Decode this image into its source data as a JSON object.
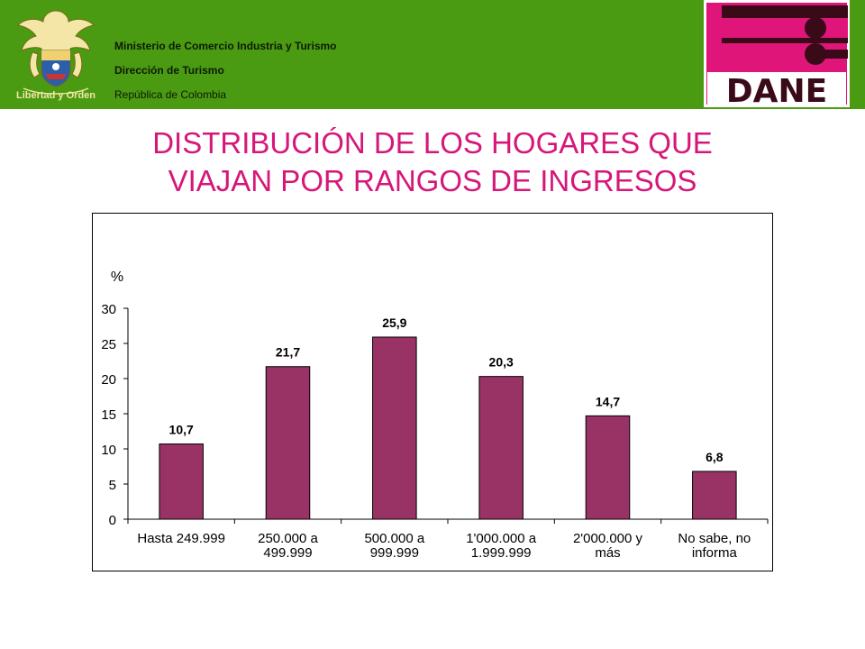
{
  "header": {
    "ministry": "Ministerio de Comercio Industria y Turismo",
    "direction": "Dirección de Turismo",
    "republic": "República de Colombia",
    "seal_text": "Libertad y Orden",
    "seal_icon": "coat-of-arms-icon",
    "logo_text": "DANE",
    "logo_icon": "dane-logo-icon",
    "bg_color": "#4a9a12"
  },
  "title_line1": "DISTRIBUCIÓN DE LOS HOGARES QUE",
  "title_line2": "VIAJAN POR RANGOS DE INGRESOS",
  "chart_data": {
    "type": "bar",
    "title": "DISTRIBUCIÓN DE LOS HOGARES QUE VIAJAN POR RANGOS DE INGRESOS",
    "xlabel": "",
    "ylabel": "%",
    "ylim": [
      0,
      30
    ],
    "yticks": [
      0,
      5,
      10,
      15,
      20,
      25,
      30
    ],
    "categories": [
      [
        "Hasta 249.999"
      ],
      [
        "250.000 a",
        "499.999"
      ],
      [
        "500.000 a",
        "999.999"
      ],
      [
        "1'000.000 a",
        "1.999.999"
      ],
      [
        "2'000.000 y",
        "más"
      ],
      [
        "No sabe, no",
        "informa"
      ]
    ],
    "values": [
      10.7,
      21.7,
      25.9,
      20.3,
      14.7,
      6.8
    ],
    "value_labels": [
      "10,7",
      "21,7",
      "25,9",
      "20,3",
      "14,7",
      "6,8"
    ],
    "bar_color": "#993366",
    "grid": false,
    "legend": "none"
  }
}
